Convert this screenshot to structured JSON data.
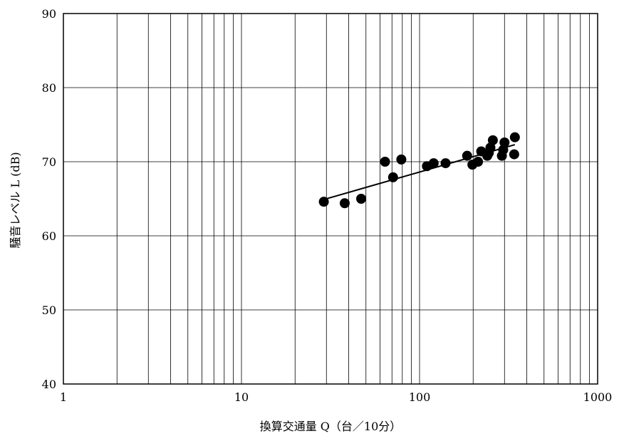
{
  "chart_data": {
    "type": "scatter",
    "xscale": "log",
    "xlim": [
      1,
      1000
    ],
    "ylim": [
      40,
      90
    ],
    "grid": true,
    "xlabel": "換算交通量 Q（台／10分）",
    "ylabel": "騒音レベル L (dB)",
    "xtick_labels": [
      "1",
      "10",
      "100",
      "1000"
    ],
    "ytick_labels": [
      "40",
      "50",
      "60",
      "70",
      "80",
      "90"
    ],
    "series": [
      {
        "type": "scatter",
        "x": [
          29,
          38,
          47,
          64,
          71,
          79,
          110,
          120,
          140,
          185,
          198,
          213,
          222,
          240,
          245,
          250,
          258,
          290,
          295,
          300,
          340,
          343
        ],
        "y": [
          64.6,
          64.4,
          65.0,
          70.0,
          67.9,
          70.3,
          69.4,
          69.8,
          69.8,
          70.8,
          69.6,
          70.0,
          71.4,
          70.8,
          71.2,
          71.9,
          72.9,
          70.8,
          71.6,
          72.6,
          71.0,
          73.3
        ]
      },
      {
        "type": "line",
        "x": [
          29,
          343
        ],
        "y": [
          64.9,
          72.3
        ]
      }
    ]
  }
}
